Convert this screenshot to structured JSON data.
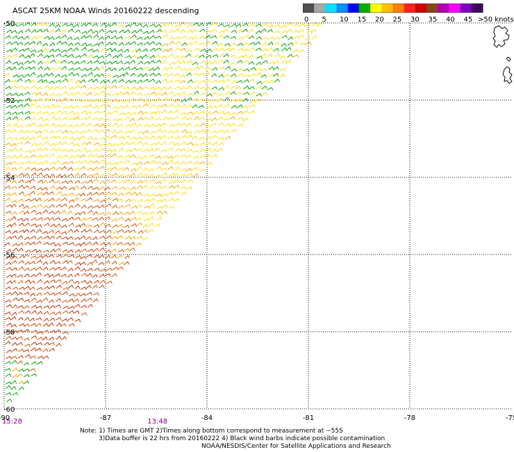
{
  "title": "ASCAT 25KM NOAA Winds 20160222 descending",
  "legend": {
    "labels": [
      "0",
      "5",
      "10",
      "15",
      "20",
      "25",
      "30",
      "35",
      "40",
      "45",
      ">50 knots"
    ],
    "colors": [
      "#505050",
      "#a8a8a8",
      "#00e0ff",
      "#0090ff",
      "#0000ff",
      "#00b000",
      "#ffff00",
      "#ffc000",
      "#ff8000",
      "#ff2020",
      "#d00000",
      "#8b4513",
      "#b000b0",
      "#ff00ff",
      "#8000c0",
      "#400060"
    ]
  },
  "map": {
    "lon_ticks": [
      {
        "lon": -90,
        "label": "-90"
      },
      {
        "lon": -87,
        "label": "-87"
      },
      {
        "lon": -84,
        "label": "-84"
      },
      {
        "lon": -81,
        "label": "-81"
      },
      {
        "lon": -78,
        "label": "-78"
      },
      {
        "lon": -75,
        "label": "-75"
      }
    ],
    "lat_ticks": [
      {
        "lat": -50,
        "label": "-50"
      },
      {
        "lat": -52,
        "label": "-52"
      },
      {
        "lat": -54,
        "label": "-54"
      },
      {
        "lat": -56,
        "label": "-56"
      },
      {
        "lat": -58,
        "label": "-58"
      },
      {
        "lat": -60,
        "label": "-60"
      }
    ],
    "lon_range": [
      -90,
      -75
    ],
    "lat_range": [
      -60,
      -50
    ],
    "swath_colors": {
      "green": "#00a000",
      "yellow": "#ffdd00",
      "orange": "#ffa000",
      "dark_orange": "#d05000",
      "red": "#c03000"
    }
  },
  "times": [
    {
      "label": "15:28",
      "lon": -90
    },
    {
      "label": "13:48",
      "lon": -85.7
    }
  ],
  "notes": {
    "line1": "Note: 1) Times are GMT 2)Times along bottom correspond to measurement at ~55S",
    "line2": "3)Data buffer is 22 hrs from 20160222 4) Black wind barbs indicate possible contamination",
    "line3": "NOAA/NESDIS/Center for Satellite Applications and Research"
  }
}
